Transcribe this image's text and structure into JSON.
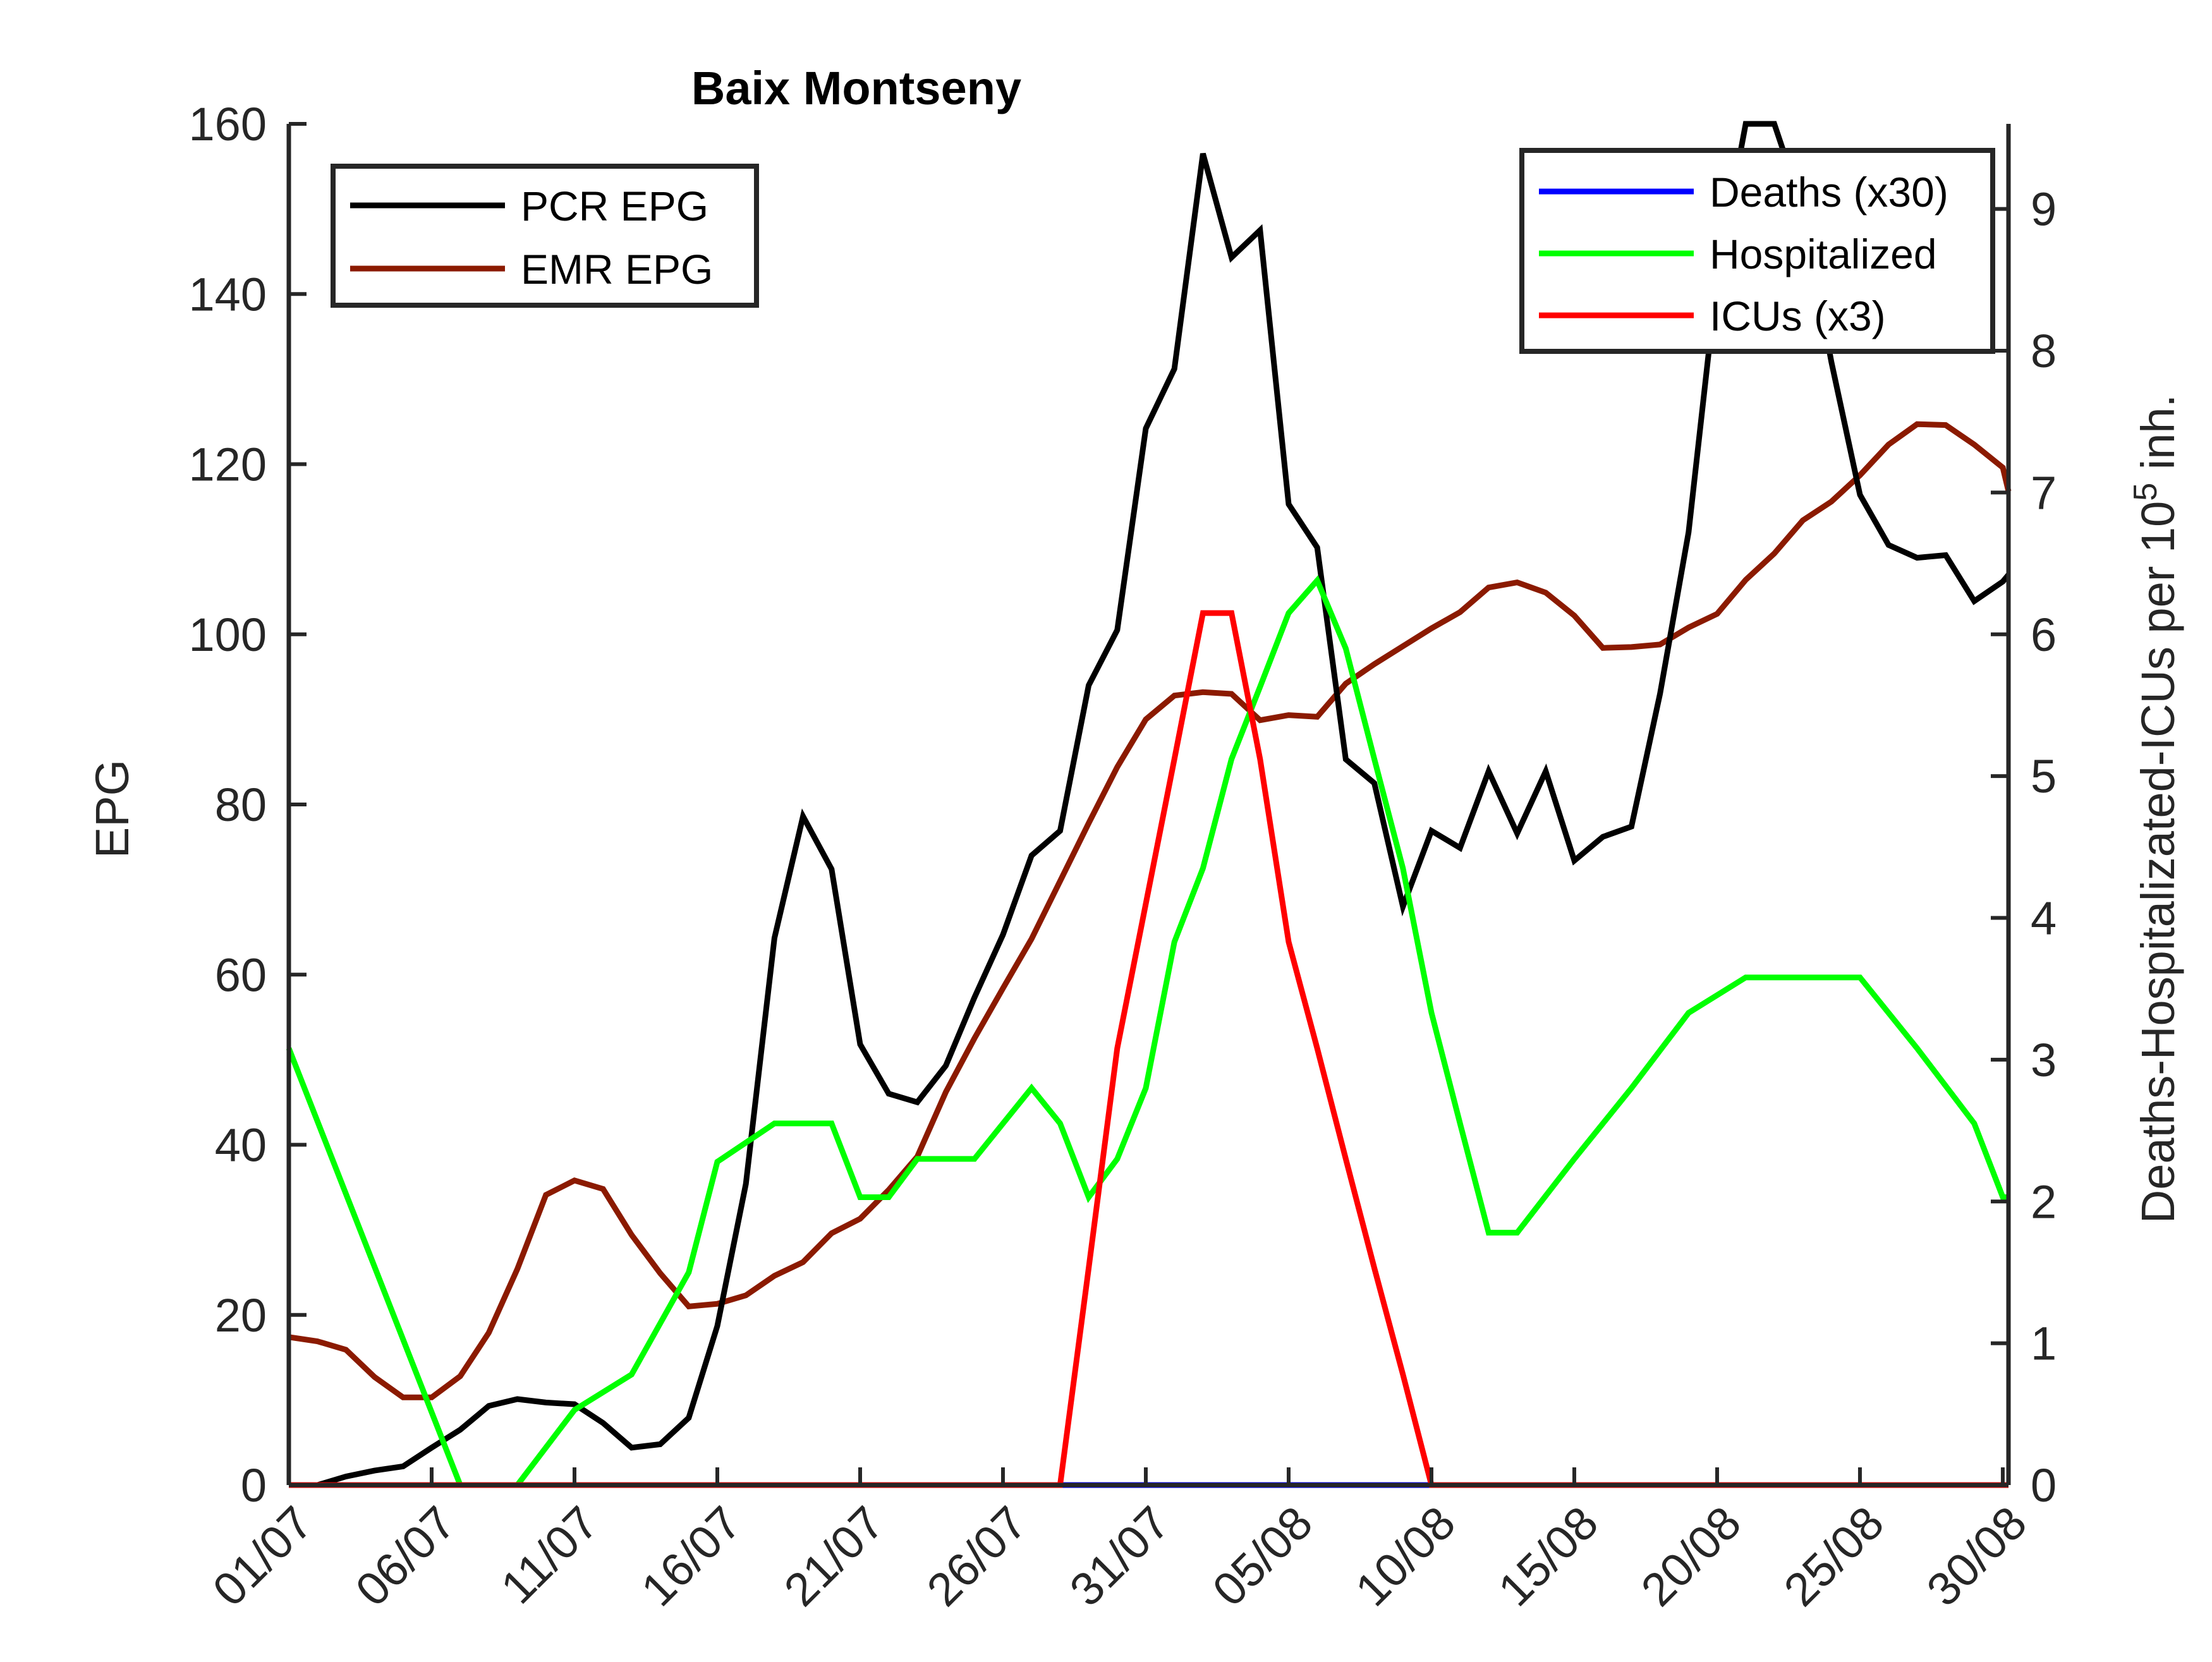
{
  "chart_data": {
    "type": "line",
    "title": "Baix Montseny",
    "ylabel_left": "EPG",
    "ylabel_right": "Deaths-Hospitalizated-ICUs per 10",
    "ylabel_right_exponent": "5",
    "ylabel_right_suffix": " inh.",
    "x_tick_labels": [
      "01/07",
      "06/07",
      "11/07",
      "16/07",
      "21/07",
      "26/07",
      "31/07",
      "05/08",
      "10/08",
      "15/08",
      "20/08",
      "25/08",
      "30/08"
    ],
    "xlim": [
      0,
      60.2
    ],
    "ylim_left": [
      0,
      160
    ],
    "ylim_right": [
      0,
      9.6
    ],
    "yticks_left": [
      0,
      20,
      40,
      60,
      80,
      100,
      120,
      140,
      160
    ],
    "yticks_right": [
      0,
      1,
      2,
      3,
      4,
      5,
      6,
      7,
      8,
      9
    ],
    "grid": false,
    "colors": {
      "pcr": "#000000",
      "emr": "#8b1a00",
      "deaths": "#0000ff",
      "hospitalized": "#00ff00",
      "icus": "#ff0000"
    },
    "legend_left": {
      "placement": "top-left",
      "entries": [
        {
          "label": "PCR EPG",
          "series": "pcr"
        },
        {
          "label": "EMR EPG",
          "series": "emr"
        }
      ]
    },
    "legend_right": {
      "placement": "top-right",
      "entries": [
        {
          "label": "Deaths (x30)",
          "series": "deaths"
        },
        {
          "label": "Hospitalized",
          "series": "hospitalized"
        },
        {
          "label": "ICUs (x3)",
          "series": "icus"
        }
      ]
    },
    "series": [
      {
        "name": "PCR EPG",
        "key": "pcr",
        "axis": "left",
        "x": [
          1,
          2,
          3,
          4,
          5,
          6,
          7,
          8,
          9,
          10,
          11,
          12,
          13,
          14,
          15,
          16,
          17,
          18,
          19,
          20,
          21,
          22,
          23,
          24,
          25,
          26,
          27,
          28,
          29,
          30,
          31,
          32,
          33,
          34,
          35,
          36,
          37,
          38,
          39,
          40,
          41,
          42,
          43,
          44,
          45,
          46,
          47,
          48,
          49,
          50,
          51,
          52,
          53,
          54,
          55,
          56,
          57,
          58,
          59,
          60,
          60.2
        ],
        "values": [
          0,
          1,
          1.7,
          2.2,
          4.4,
          6.5,
          9.3,
          10.1,
          9.7,
          9.5,
          7.3,
          4.4,
          4.8,
          7.9,
          18.7,
          35.4,
          64.3,
          78.6,
          72.4,
          51.8,
          46,
          45,
          49.3,
          57.3,
          64.7,
          74,
          76.9,
          94,
          100.5,
          124.2,
          131.2,
          156.5,
          144.3,
          147.5,
          115.3,
          110.2,
          85.3,
          82.5,
          68,
          76.9,
          74.9,
          83.9,
          76.6,
          83.9,
          73.4,
          76.2,
          77.4,
          93,
          112,
          142,
          160,
          160,
          150,
          132,
          116.4,
          110.5,
          109,
          109.3,
          103.9,
          106.2,
          107
        ]
      },
      {
        "name": "EMR EPG",
        "key": "emr",
        "axis": "left",
        "x": [
          0,
          1,
          2,
          3,
          4,
          5,
          6,
          7,
          8,
          9,
          10,
          11,
          12,
          13,
          14,
          15,
          16,
          17,
          18,
          19,
          20,
          21,
          22,
          23,
          24,
          25,
          26,
          27,
          28,
          29,
          30,
          31,
          32,
          33,
          34,
          35,
          36,
          37,
          38,
          39,
          40,
          41,
          42,
          43,
          44,
          45,
          46,
          47,
          48,
          49,
          50,
          51,
          52,
          53,
          54,
          55,
          56,
          57,
          58,
          59,
          60,
          60.2
        ],
        "values": [
          17.4,
          16.9,
          15.9,
          12.7,
          10.3,
          10.3,
          12.8,
          17.9,
          25.4,
          34.1,
          35.8,
          34.8,
          29.4,
          24.9,
          21,
          21.3,
          22.3,
          24.6,
          26.2,
          29.6,
          31.3,
          34.7,
          38.6,
          46.2,
          52.5,
          58.4,
          64.2,
          71,
          77.8,
          84.4,
          90,
          92.8,
          93.2,
          93,
          89.9,
          90.5,
          90.3,
          94.2,
          96.5,
          98.6,
          100.7,
          102.6,
          105.5,
          106.1,
          104.9,
          102.2,
          98.4,
          98.5,
          98.8,
          100.8,
          102.4,
          106.4,
          109.5,
          113.4,
          115.6,
          118.7,
          122.3,
          124.7,
          124.6,
          122.3,
          119.6,
          116.8
        ]
      },
      {
        "name": "Deaths (x30)",
        "key": "deaths",
        "axis": "right",
        "x": [
          26,
          40.8
        ],
        "values": [
          0,
          0
        ]
      },
      {
        "name": "Hospitalized",
        "key": "hospitalized",
        "axis": "right",
        "x": [
          0,
          6,
          8,
          10,
          12,
          14,
          15,
          17,
          18,
          19,
          20,
          21,
          22,
          23,
          24,
          25,
          26,
          27,
          28,
          29,
          30,
          31,
          32,
          33,
          34,
          35,
          36,
          37,
          38,
          39,
          40,
          41,
          42,
          43,
          45,
          47,
          49,
          51,
          53,
          55,
          57,
          59,
          60,
          60.2
        ],
        "values": [
          3.08,
          0,
          0,
          0.53,
          0.78,
          1.5,
          2.28,
          2.55,
          2.55,
          2.55,
          2.03,
          2.03,
          2.3,
          2.3,
          2.3,
          2.55,
          2.8,
          2.55,
          2.03,
          2.3,
          2.8,
          3.83,
          4.35,
          5.12,
          5.63,
          6.15,
          6.38,
          5.9,
          5.12,
          4.35,
          3.33,
          2.55,
          1.78,
          1.78,
          2.3,
          2.8,
          3.33,
          3.58,
          3.58,
          3.58,
          3.08,
          2.55,
          2.03,
          2.03
        ]
      },
      {
        "name": "ICUs (x3)",
        "key": "icus",
        "axis": "right",
        "x": [
          0,
          26,
          27,
          28,
          29,
          30,
          31,
          32,
          33,
          34,
          35,
          36,
          37,
          38,
          39,
          40,
          41,
          60.2
        ],
        "values": [
          0,
          0,
          0,
          1.53,
          3.08,
          4.1,
          5.12,
          6.15,
          6.15,
          5.12,
          3.83,
          3.08,
          2.3,
          1.53,
          0.78,
          0,
          0,
          0
        ]
      }
    ]
  }
}
